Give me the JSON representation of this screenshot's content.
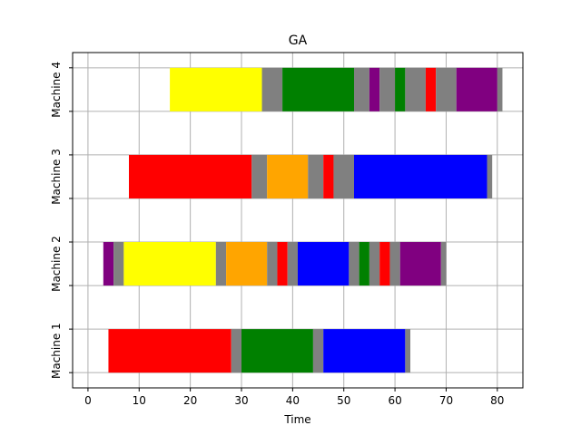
{
  "chart_data": {
    "type": "gantt",
    "title": "GA",
    "xlabel": "Time",
    "ylabel": "",
    "xlim": [
      -3,
      85
    ],
    "xticks": [
      0,
      10,
      20,
      30,
      40,
      50,
      60,
      70,
      80
    ],
    "grid": true,
    "machines": [
      {
        "name": "Machine 1",
        "tasks": [
          {
            "start": 4,
            "end": 28,
            "color": "#ff0000"
          },
          {
            "start": 28,
            "end": 30,
            "color": "#808080"
          },
          {
            "start": 30,
            "end": 44,
            "color": "#008000"
          },
          {
            "start": 44,
            "end": 46,
            "color": "#808080"
          },
          {
            "start": 46,
            "end": 62,
            "color": "#0000ff"
          },
          {
            "start": 62,
            "end": 63,
            "color": "#808080"
          }
        ]
      },
      {
        "name": "Machine 2",
        "tasks": [
          {
            "start": 3,
            "end": 5,
            "color": "#800080"
          },
          {
            "start": 5,
            "end": 7,
            "color": "#808080"
          },
          {
            "start": 7,
            "end": 25,
            "color": "#ffff00"
          },
          {
            "start": 25,
            "end": 27,
            "color": "#808080"
          },
          {
            "start": 27,
            "end": 35,
            "color": "#ffa500"
          },
          {
            "start": 35,
            "end": 37,
            "color": "#808080"
          },
          {
            "start": 37,
            "end": 39,
            "color": "#ff0000"
          },
          {
            "start": 39,
            "end": 41,
            "color": "#808080"
          },
          {
            "start": 41,
            "end": 51,
            "color": "#0000ff"
          },
          {
            "start": 51,
            "end": 53,
            "color": "#808080"
          },
          {
            "start": 53,
            "end": 55,
            "color": "#008000"
          },
          {
            "start": 55,
            "end": 57,
            "color": "#808080"
          },
          {
            "start": 57,
            "end": 59,
            "color": "#ff0000"
          },
          {
            "start": 59,
            "end": 61,
            "color": "#808080"
          },
          {
            "start": 61,
            "end": 69,
            "color": "#800080"
          },
          {
            "start": 69,
            "end": 70,
            "color": "#808080"
          }
        ]
      },
      {
        "name": "Machine 3",
        "tasks": [
          {
            "start": 8,
            "end": 32,
            "color": "#ff0000"
          },
          {
            "start": 32,
            "end": 35,
            "color": "#808080"
          },
          {
            "start": 35,
            "end": 43,
            "color": "#ffa500"
          },
          {
            "start": 43,
            "end": 46,
            "color": "#808080"
          },
          {
            "start": 46,
            "end": 48,
            "color": "#ff0000"
          },
          {
            "start": 48,
            "end": 52,
            "color": "#808080"
          },
          {
            "start": 52,
            "end": 78,
            "color": "#0000ff"
          },
          {
            "start": 78,
            "end": 79,
            "color": "#808080"
          }
        ]
      },
      {
        "name": "Machine 4",
        "tasks": [
          {
            "start": 16,
            "end": 34,
            "color": "#ffff00"
          },
          {
            "start": 34,
            "end": 38,
            "color": "#808080"
          },
          {
            "start": 38,
            "end": 52,
            "color": "#008000"
          },
          {
            "start": 52,
            "end": 55,
            "color": "#808080"
          },
          {
            "start": 55,
            "end": 57,
            "color": "#800080"
          },
          {
            "start": 57,
            "end": 60,
            "color": "#808080"
          },
          {
            "start": 60,
            "end": 62,
            "color": "#008000"
          },
          {
            "start": 62,
            "end": 66,
            "color": "#808080"
          },
          {
            "start": 66,
            "end": 68,
            "color": "#ff0000"
          },
          {
            "start": 68,
            "end": 72,
            "color": "#808080"
          },
          {
            "start": 72,
            "end": 80,
            "color": "#800080"
          },
          {
            "start": 80,
            "end": 81,
            "color": "#808080"
          }
        ]
      }
    ]
  }
}
